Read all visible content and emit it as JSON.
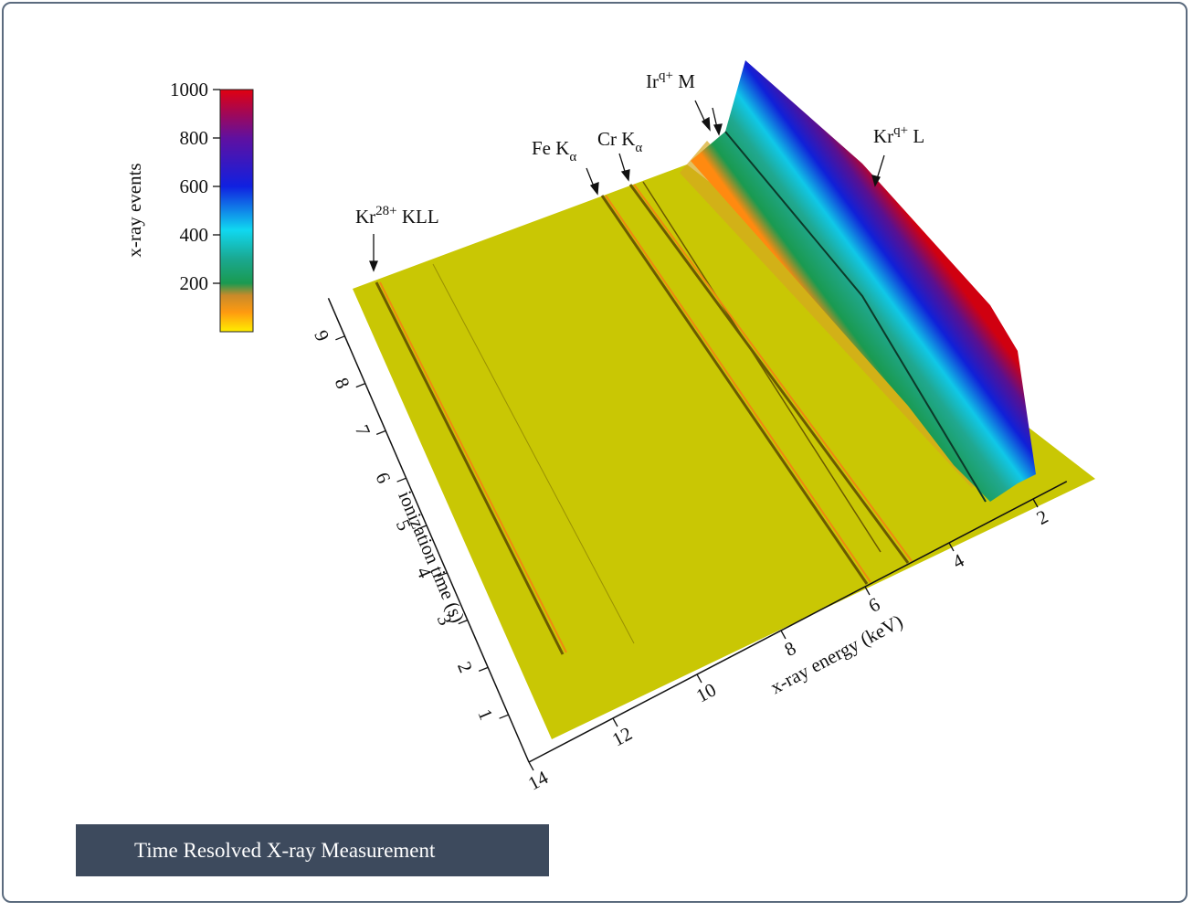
{
  "figure": {
    "colorbar": {
      "label": "x-ray events",
      "lim": [
        0,
        1000
      ],
      "ticks": [
        200,
        400,
        600,
        800,
        1000
      ]
    },
    "energy_axis": {
      "label": "x-ray energy (keV)",
      "ticks": [
        2,
        4,
        6,
        8,
        10,
        12,
        14
      ]
    },
    "time_axis": {
      "label": "ionization time (s)",
      "ticks": [
        1,
        2,
        3,
        4,
        5,
        6,
        7,
        8,
        9
      ]
    },
    "annotations": [
      {
        "base": "Kr",
        "sup": "28+",
        "rest": " KLL"
      },
      {
        "base": "Fe K",
        "sub": "α"
      },
      {
        "base": "Cr K",
        "sub": "α"
      },
      {
        "base": "Ir",
        "sup": "q+",
        "rest": " M"
      },
      {
        "base": "Kr",
        "sup": "q+",
        "rest": " L"
      }
    ],
    "caption": "Time Resolved X-ray Measurement"
  }
}
